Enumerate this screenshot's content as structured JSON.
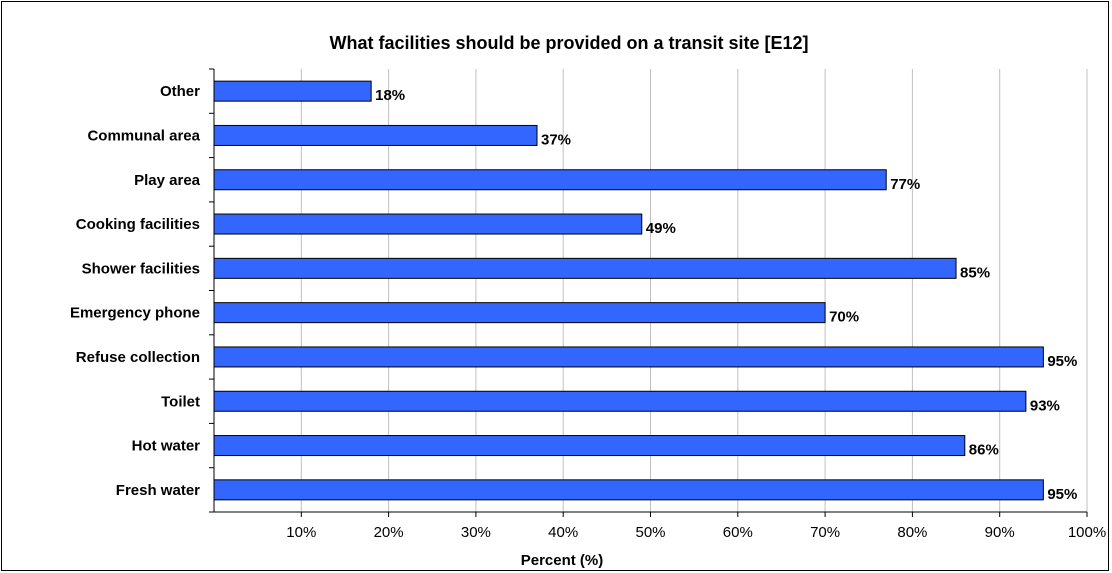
{
  "chart_data": {
    "type": "bar",
    "orientation": "horizontal",
    "title": "What facilities should be provided on a transit site [E12]",
    "xlabel": "Percent (%)",
    "ylabel": "",
    "categories": [
      "Other",
      "Communal area",
      "Play area",
      "Cooking facilities",
      "Shower facilities",
      "Emergency phone",
      "Refuse collection",
      "Toilet",
      "Hot water",
      "Fresh water"
    ],
    "values": [
      18,
      37,
      77,
      49,
      85,
      70,
      95,
      93,
      86,
      95
    ],
    "data_labels": [
      "18%",
      "37%",
      "77%",
      "49%",
      "85%",
      "70%",
      "95%",
      "93%",
      "86%",
      "95%"
    ],
    "xlim": [
      0,
      100
    ],
    "x_ticks": [
      10,
      20,
      30,
      40,
      50,
      60,
      70,
      80,
      90,
      100
    ],
    "x_tick_labels": [
      "10%",
      "20%",
      "30%",
      "40%",
      "50%",
      "60%",
      "70%",
      "80%",
      "90%",
      "100%"
    ],
    "grid": "vertical",
    "legend": "none",
    "colors": {
      "bar": "#3366ff",
      "bar_border": "#000000",
      "grid": "#c0c0c0",
      "axis": "#000000"
    }
  }
}
